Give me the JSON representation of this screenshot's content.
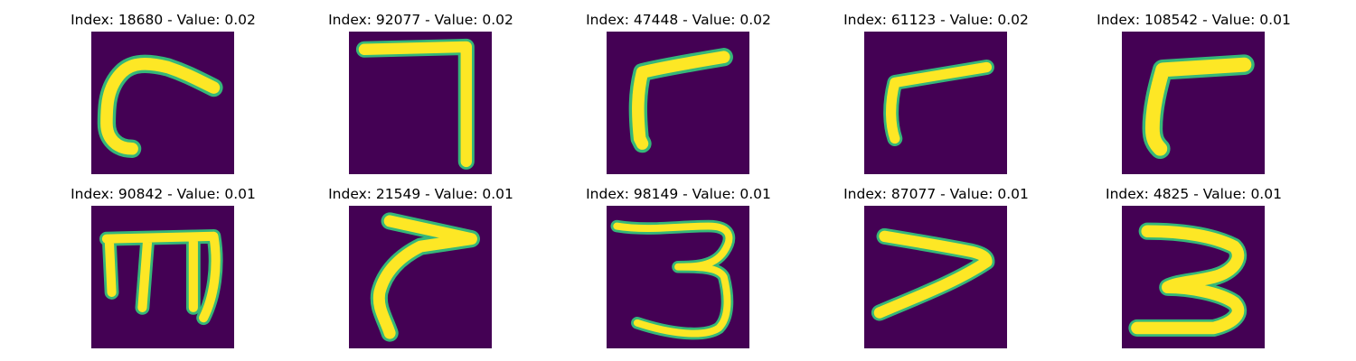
{
  "colors": {
    "background": "#440154",
    "stroke": "#fde725",
    "edge": "#35b779"
  },
  "panels": [
    {
      "title": "Index: 18680 - Value: 0.02"
    },
    {
      "title": "Index: 92077 - Value: 0.02"
    },
    {
      "title": "Index: 47448 - Value: 0.02"
    },
    {
      "title": "Index: 61123 - Value: 0.02"
    },
    {
      "title": "Index: 108542 - Value: 0.01"
    },
    {
      "title": "Index: 90842 - Value: 0.01"
    },
    {
      "title": "Index: 21549 - Value: 0.01"
    },
    {
      "title": "Index: 98149 - Value: 0.01"
    },
    {
      "title": "Index: 87077 - Value: 0.01"
    },
    {
      "title": "Index: 4825 - Value: 0.01"
    }
  ]
}
